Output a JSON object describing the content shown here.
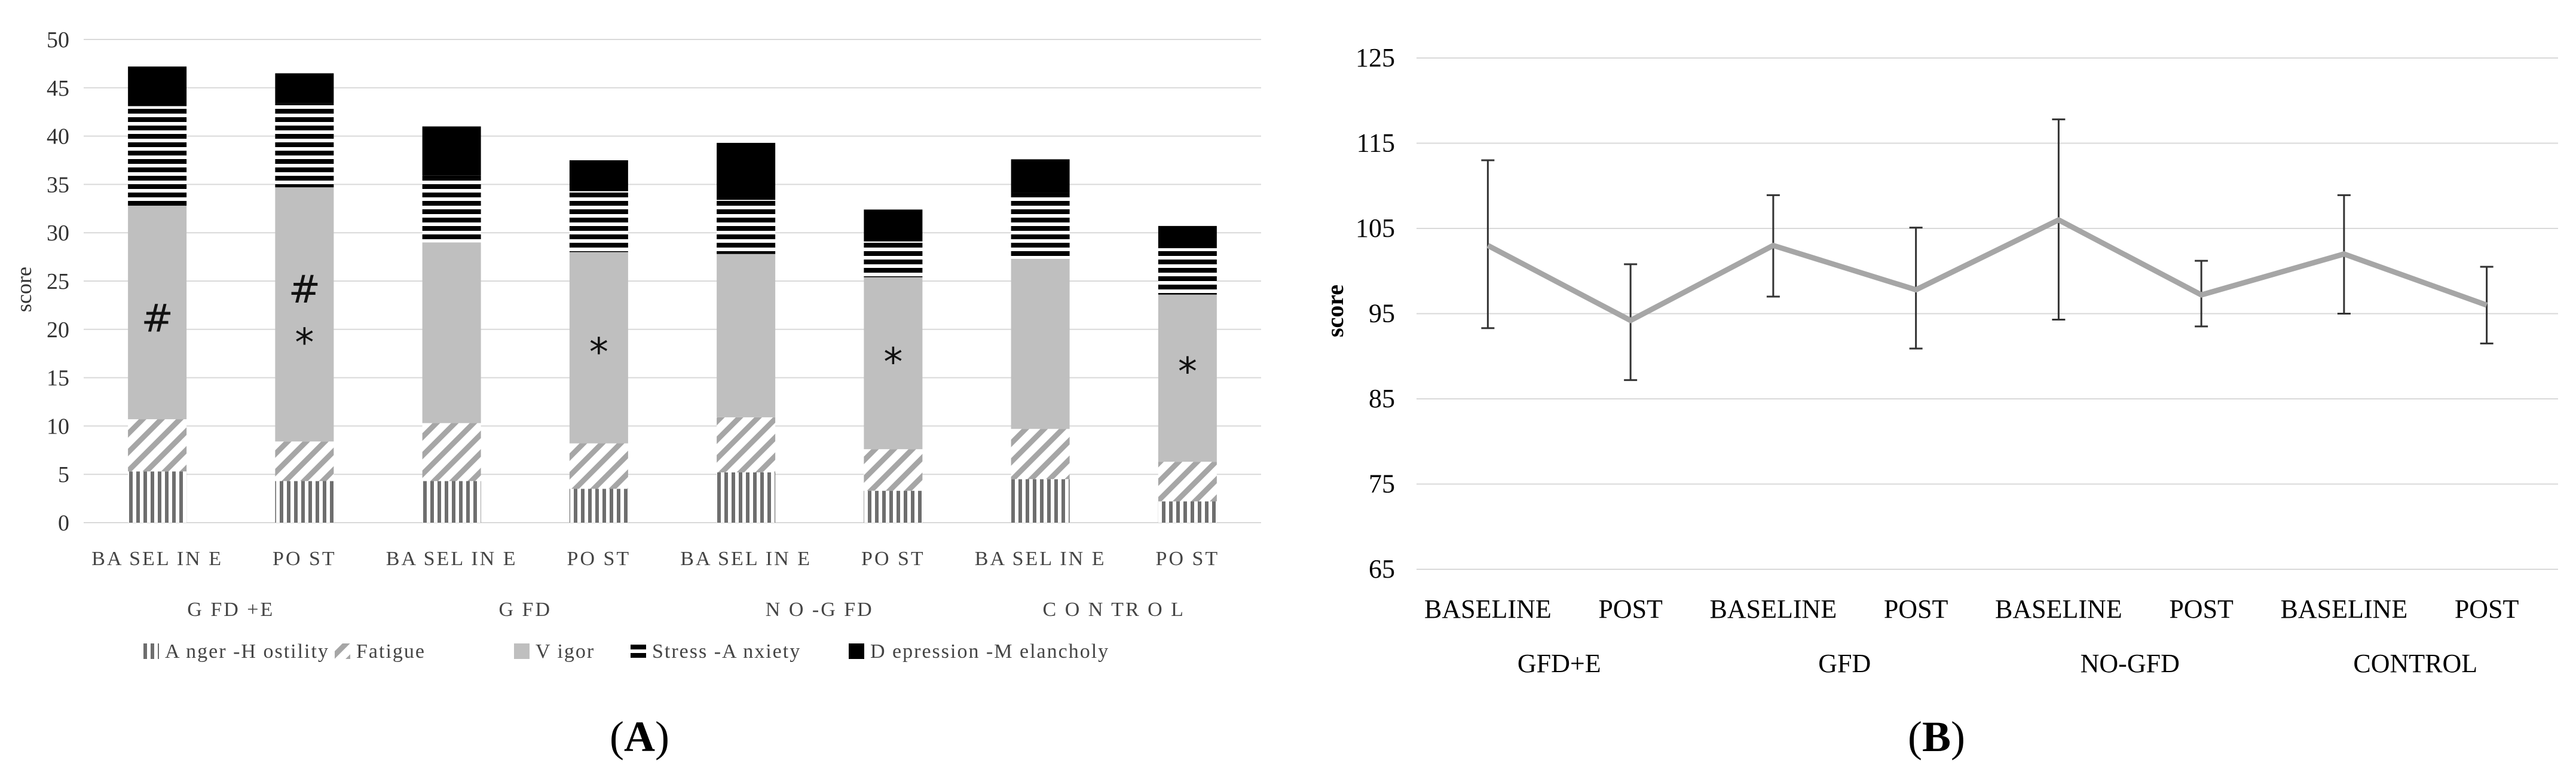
{
  "chart_data": [
    {
      "type": "bar",
      "stacked": true,
      "panel_label": "A",
      "ylabel": "score",
      "ylim": [
        0,
        50
      ],
      "yticks": [
        0,
        5,
        10,
        15,
        20,
        25,
        30,
        35,
        40,
        45,
        50
      ],
      "categories": [
        "BA SEL IN E",
        "PO ST",
        "BA SEL IN E",
        "PO ST",
        "BA SEL IN E",
        "PO ST",
        "BA SEL IN E",
        "PO ST"
      ],
      "groups": [
        "G FD +E",
        "G FD",
        "N O -G FD",
        "C O N TR O L"
      ],
      "series": [
        {
          "name": "A nger -H ostility",
          "pattern": "vertical-lines",
          "values": [
            5.3,
            4.3,
            4.3,
            3.5,
            5.2,
            3.3,
            4.5,
            2.2
          ]
        },
        {
          "name": "Fatigue",
          "pattern": "diagonal-lines",
          "values": [
            5.4,
            4.1,
            6.0,
            4.7,
            5.7,
            4.3,
            5.2,
            4.1
          ]
        },
        {
          "name": "V igor",
          "pattern": "solid-gray",
          "values": [
            22.1,
            26.3,
            18.7,
            19.8,
            16.9,
            17.8,
            17.6,
            17.3
          ]
        },
        {
          "name": "Stress -A nxiety",
          "pattern": "horizontal-lines",
          "values": [
            10.3,
            8.7,
            6.9,
            6.3,
            5.6,
            3.7,
            6.8,
            4.8
          ]
        },
        {
          "name": "D epression -M elancholy",
          "pattern": "solid-black",
          "values": [
            4.1,
            3.1,
            5.1,
            3.2,
            5.9,
            3.3,
            3.5,
            2.3
          ]
        }
      ],
      "annotations": [
        {
          "bar": 0,
          "y": 21,
          "text": "#"
        },
        {
          "bar": 1,
          "y": 24,
          "text": "#"
        },
        {
          "bar": 1,
          "y": 18.5,
          "text": "*"
        },
        {
          "bar": 3,
          "y": 17.5,
          "text": "*"
        },
        {
          "bar": 5,
          "y": 16.5,
          "text": "*"
        },
        {
          "bar": 7,
          "y": 15.5,
          "text": "*"
        }
      ],
      "legend_position": "bottom"
    },
    {
      "type": "line",
      "panel_label": "B",
      "ylabel": "score",
      "ylim": [
        65,
        125
      ],
      "yticks": [
        65,
        75,
        85,
        95,
        105,
        115,
        125
      ],
      "categories": [
        "BASELINE",
        "POST",
        "BASELINE",
        "POST",
        "BASELINE",
        "POST",
        "BASELINE",
        "POST"
      ],
      "groups": [
        "GFD+E",
        "GFD",
        "NO-GFD",
        "CONTROL"
      ],
      "series": [
        {
          "name": "score",
          "values": [
            103,
            94.2,
            103,
            97.8,
            106,
            97.2,
            102,
            96
          ]
        }
      ],
      "error_bars": {
        "upper": [
          113,
          100.8,
          108.9,
          105.1,
          117.8,
          101.2,
          108.9,
          100.5
        ],
        "lower": [
          93.3,
          87.2,
          97,
          90.9,
          94.3,
          93.5,
          95,
          91.5
        ]
      }
    }
  ]
}
